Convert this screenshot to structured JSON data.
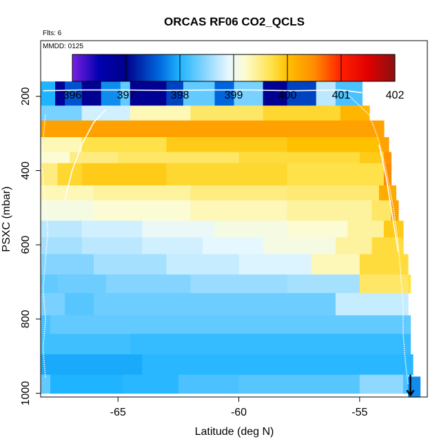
{
  "chart_data": {
    "type": "heatmap",
    "title": "ORCAS RF06 CO2_QCLS",
    "flights_label": "Flts: 6",
    "date_label": "MMDD: 0125",
    "xlabel": "Latitude (deg N)",
    "ylabel": "PSXC (mbar)",
    "xlim": [
      -68.2,
      -52.2
    ],
    "ylim": [
      1010,
      50
    ],
    "x_ticks": [
      -65,
      -60,
      -55
    ],
    "x_tick_labels": [
      "-65",
      "-60",
      "-55"
    ],
    "y_ticks": [
      200,
      400,
      600,
      800,
      1000
    ],
    "y_tick_labels": [
      "200",
      "400",
      "600",
      "800",
      "1000"
    ],
    "colorbar": {
      "min": 396,
      "max": 402,
      "ticks": [
        396,
        397,
        398,
        399,
        400,
        401,
        402
      ],
      "tick_labels": [
        "396",
        "397",
        "398",
        "399",
        "400",
        "401",
        "402"
      ],
      "stops": [
        {
          "v": 396.0,
          "c": "#7a1fe0"
        },
        {
          "v": 396.5,
          "c": "#0000b0"
        },
        {
          "v": 397.0,
          "c": "#00008a"
        },
        {
          "v": 397.6,
          "c": "#0064dc"
        },
        {
          "v": 398.0,
          "c": "#1eb4ff"
        },
        {
          "v": 398.5,
          "c": "#8fd8ff"
        },
        {
          "v": 398.9,
          "c": "#e6f8ff"
        },
        {
          "v": 399.2,
          "c": "#fcfcd4"
        },
        {
          "v": 399.7,
          "c": "#ffe24a"
        },
        {
          "v": 400.0,
          "c": "#ffc000"
        },
        {
          "v": 400.5,
          "c": "#ff8c00"
        },
        {
          "v": 401.0,
          "c": "#ff2000"
        },
        {
          "v": 401.5,
          "c": "#e00000"
        },
        {
          "v": 402.0,
          "c": "#8a1010"
        }
      ]
    },
    "rows": [
      {
        "p0": 160,
        "p1": 225,
        "x_end": -54.9,
        "segs": [
          [
            -68.2,
            -67.6,
            398.0
          ],
          [
            -67.6,
            -67.2,
            396.8
          ],
          [
            -67.2,
            -66.5,
            397.5
          ],
          [
            -66.5,
            -65.7,
            396.9
          ],
          [
            -65.7,
            -64.9,
            397.8
          ],
          [
            -64.9,
            -64.5,
            398.3
          ],
          [
            -64.5,
            -63.0,
            396.9
          ],
          [
            -63.0,
            -62.3,
            397.4
          ],
          [
            -62.3,
            -61.0,
            398.3
          ],
          [
            -61.0,
            -60.2,
            397.6
          ],
          [
            -60.2,
            -59.0,
            398.4
          ],
          [
            -59.0,
            -58.0,
            396.9
          ],
          [
            -58.0,
            -56.8,
            397.4
          ],
          [
            -56.8,
            -56.0,
            398.7
          ],
          [
            -56.0,
            -54.9,
            398.2
          ]
        ]
      },
      {
        "p0": 225,
        "p1": 265,
        "x_end": -54.6,
        "segs": [
          [
            -68.2,
            -66.5,
            398.4
          ],
          [
            -66.5,
            -64.5,
            398.8
          ],
          [
            -64.5,
            -62.0,
            399.3
          ],
          [
            -62.0,
            -59.0,
            399.6
          ],
          [
            -59.0,
            -55.8,
            399.8
          ],
          [
            -55.8,
            -54.6,
            400.1
          ]
        ]
      },
      {
        "p0": 265,
        "p1": 310,
        "x_end": -54.0,
        "segs": [
          [
            -68.2,
            -54.0,
            400.3
          ]
        ]
      },
      {
        "p0": 310,
        "p1": 350,
        "x_end": -53.8,
        "segs": [
          [
            -68.2,
            -66.5,
            399.3
          ],
          [
            -66.5,
            -63.0,
            399.7
          ],
          [
            -63.0,
            -58.0,
            399.9
          ],
          [
            -58.0,
            -54.2,
            400.0
          ],
          [
            -54.2,
            -53.8,
            400.3
          ]
        ]
      },
      {
        "p0": 350,
        "p1": 380,
        "x_end": -53.7,
        "segs": [
          [
            -68.2,
            -67.0,
            399.2
          ],
          [
            -67.0,
            -65.0,
            399.5
          ],
          [
            -65.0,
            -60.0,
            399.6
          ],
          [
            -60.0,
            -55.0,
            399.75
          ],
          [
            -55.0,
            -54.0,
            399.9
          ],
          [
            -54.0,
            -53.7,
            400.4
          ]
        ]
      },
      {
        "p0": 380,
        "p1": 440,
        "x_end": -53.7,
        "segs": [
          [
            -68.2,
            -67.5,
            399.5
          ],
          [
            -67.5,
            -66.5,
            399.8
          ],
          [
            -66.5,
            -63.0,
            399.9
          ],
          [
            -63.0,
            -58.0,
            399.8
          ],
          [
            -58.0,
            -54.0,
            399.7
          ],
          [
            -54.0,
            -53.7,
            400.5
          ]
        ]
      },
      {
        "p0": 440,
        "p1": 480,
        "x_end": -53.5,
        "segs": [
          [
            -68.2,
            -66.0,
            399.3
          ],
          [
            -66.0,
            -62.0,
            399.4
          ],
          [
            -62.0,
            -58.0,
            399.5
          ],
          [
            -58.0,
            -54.2,
            399.55
          ],
          [
            -54.2,
            -53.5,
            400.2
          ]
        ]
      },
      {
        "p0": 480,
        "p1": 535,
        "x_end": -53.4,
        "segs": [
          [
            -68.2,
            -66.0,
            399.1
          ],
          [
            -66.0,
            -62.0,
            399.2
          ],
          [
            -62.0,
            -58.0,
            399.3
          ],
          [
            -58.0,
            -54.5,
            399.4
          ],
          [
            -54.5,
            -53.7,
            399.6
          ],
          [
            -53.7,
            -53.4,
            400.3
          ]
        ]
      },
      {
        "p0": 535,
        "p1": 580,
        "x_end": -53.2,
        "segs": [
          [
            -68.2,
            -66.5,
            398.7
          ],
          [
            -66.5,
            -64.0,
            398.8
          ],
          [
            -64.0,
            -61.0,
            398.95
          ],
          [
            -61.0,
            -58.0,
            399.1
          ],
          [
            -58.0,
            -55.5,
            399.2
          ],
          [
            -55.5,
            -54.0,
            399.4
          ],
          [
            -54.0,
            -53.2,
            399.9
          ]
        ]
      },
      {
        "p0": 580,
        "p1": 625,
        "x_end": -53.2,
        "segs": [
          [
            -68.2,
            -66.5,
            398.6
          ],
          [
            -66.5,
            -64.0,
            398.7
          ],
          [
            -64.0,
            -61.5,
            398.8
          ],
          [
            -61.5,
            -59.0,
            398.9
          ],
          [
            -59.0,
            -56.0,
            399.1
          ],
          [
            -56.0,
            -54.5,
            399.4
          ],
          [
            -54.5,
            -53.2,
            399.75
          ]
        ]
      },
      {
        "p0": 625,
        "p1": 680,
        "x_end": -53.0,
        "segs": [
          [
            -68.2,
            -66.0,
            398.45
          ],
          [
            -66.0,
            -63.0,
            398.6
          ],
          [
            -63.0,
            -60.0,
            398.75
          ],
          [
            -60.0,
            -57.0,
            398.85
          ],
          [
            -57.0,
            -55.0,
            399.3
          ],
          [
            -55.0,
            -53.0,
            399.75
          ]
        ]
      },
      {
        "p0": 680,
        "p1": 730,
        "x_end": -52.9,
        "segs": [
          [
            -68.2,
            -67.5,
            398.3
          ],
          [
            -67.5,
            -65.5,
            398.35
          ],
          [
            -65.5,
            -62.0,
            398.45
          ],
          [
            -62.0,
            -58.0,
            398.55
          ],
          [
            -58.0,
            -55.0,
            398.6
          ],
          [
            -55.0,
            -53.0,
            399.6
          ],
          [
            -53.0,
            -52.9,
            399.7
          ]
        ]
      },
      {
        "p0": 730,
        "p1": 790,
        "x_end": -53.0,
        "segs": [
          [
            -68.2,
            -67.2,
            398.4
          ],
          [
            -67.2,
            -66.0,
            398.25
          ],
          [
            -66.0,
            -56.0,
            398.35
          ],
          [
            -56.0,
            -53.0,
            398.75
          ]
        ]
      },
      {
        "p0": 790,
        "p1": 840,
        "x_end": -52.9,
        "segs": [
          [
            -68.2,
            -67.8,
            398.2
          ],
          [
            -67.8,
            -52.9,
            398.3
          ]
        ]
      },
      {
        "p0": 840,
        "p1": 895,
        "x_end": -52.9,
        "segs": [
          [
            -68.2,
            -64.5,
            398.15
          ],
          [
            -64.5,
            -52.9,
            398.1
          ]
        ]
      },
      {
        "p0": 895,
        "p1": 950,
        "x_end": -52.8,
        "segs": [
          [
            -68.2,
            -64.0,
            397.95
          ],
          [
            -64.0,
            -52.8,
            398.05
          ]
        ]
      },
      {
        "p0": 950,
        "p1": 1000,
        "x_end": -53.0,
        "segs": [
          [
            -68.2,
            -67.8,
            398.3
          ],
          [
            -67.8,
            -64.8,
            398.0
          ],
          [
            -64.8,
            -62.5,
            398.05
          ],
          [
            -62.5,
            -60.0,
            398.2
          ],
          [
            -60.0,
            -55.0,
            398.25
          ],
          [
            -55.0,
            -53.2,
            398.5
          ],
          [
            -53.2,
            -53.0,
            398.2
          ]
        ]
      },
      {
        "p0": 955,
        "p1": 1010,
        "x_end": -52.5,
        "segs": [
          [
            -53.0,
            -52.5,
            397.8
          ]
        ]
      }
    ],
    "flight_tracks": [
      {
        "name": "track-top",
        "points": [
          [
            -68.1,
            185
          ],
          [
            -66.5,
            183
          ],
          [
            -64.8,
            183
          ],
          [
            -63.0,
            184
          ],
          [
            -61.2,
            183
          ],
          [
            -59.5,
            183
          ],
          [
            -57.8,
            185
          ],
          [
            -55.8,
            183
          ],
          [
            -54.9,
            190
          ]
        ]
      },
      {
        "name": "track-left-descent",
        "points": [
          [
            -68.0,
            250
          ],
          [
            -68.1,
            320
          ],
          [
            -68.2,
            370
          ],
          [
            -68.1,
            420
          ],
          [
            -68.0,
            500
          ],
          [
            -67.9,
            560
          ],
          [
            -68.0,
            640
          ],
          [
            -68.1,
            720
          ],
          [
            -68.0,
            800
          ],
          [
            -68.1,
            880
          ],
          [
            -68.0,
            960
          ]
        ]
      },
      {
        "name": "track-mid-climb",
        "points": [
          [
            -67.2,
            480
          ],
          [
            -66.9,
            400
          ],
          [
            -66.5,
            330
          ],
          [
            -66.0,
            270
          ],
          [
            -65.5,
            235
          ]
        ]
      },
      {
        "name": "track-right-descent",
        "points": [
          [
            -55.5,
            195
          ],
          [
            -54.6,
            250
          ],
          [
            -54.2,
            320
          ],
          [
            -53.9,
            400
          ],
          [
            -53.6,
            500
          ],
          [
            -53.4,
            600
          ],
          [
            -53.3,
            680
          ],
          [
            -53.2,
            760
          ],
          [
            -53.2,
            840
          ],
          [
            -53.1,
            920
          ],
          [
            -53.0,
            975
          ]
        ]
      },
      {
        "name": "track-right-inner",
        "points": [
          [
            -54.2,
            330
          ],
          [
            -53.9,
            420
          ],
          [
            -53.6,
            540
          ],
          [
            -53.4,
            620
          ]
        ]
      }
    ],
    "end_marker": {
      "x": -52.9,
      "y0": 950,
      "y1": 1005
    }
  }
}
